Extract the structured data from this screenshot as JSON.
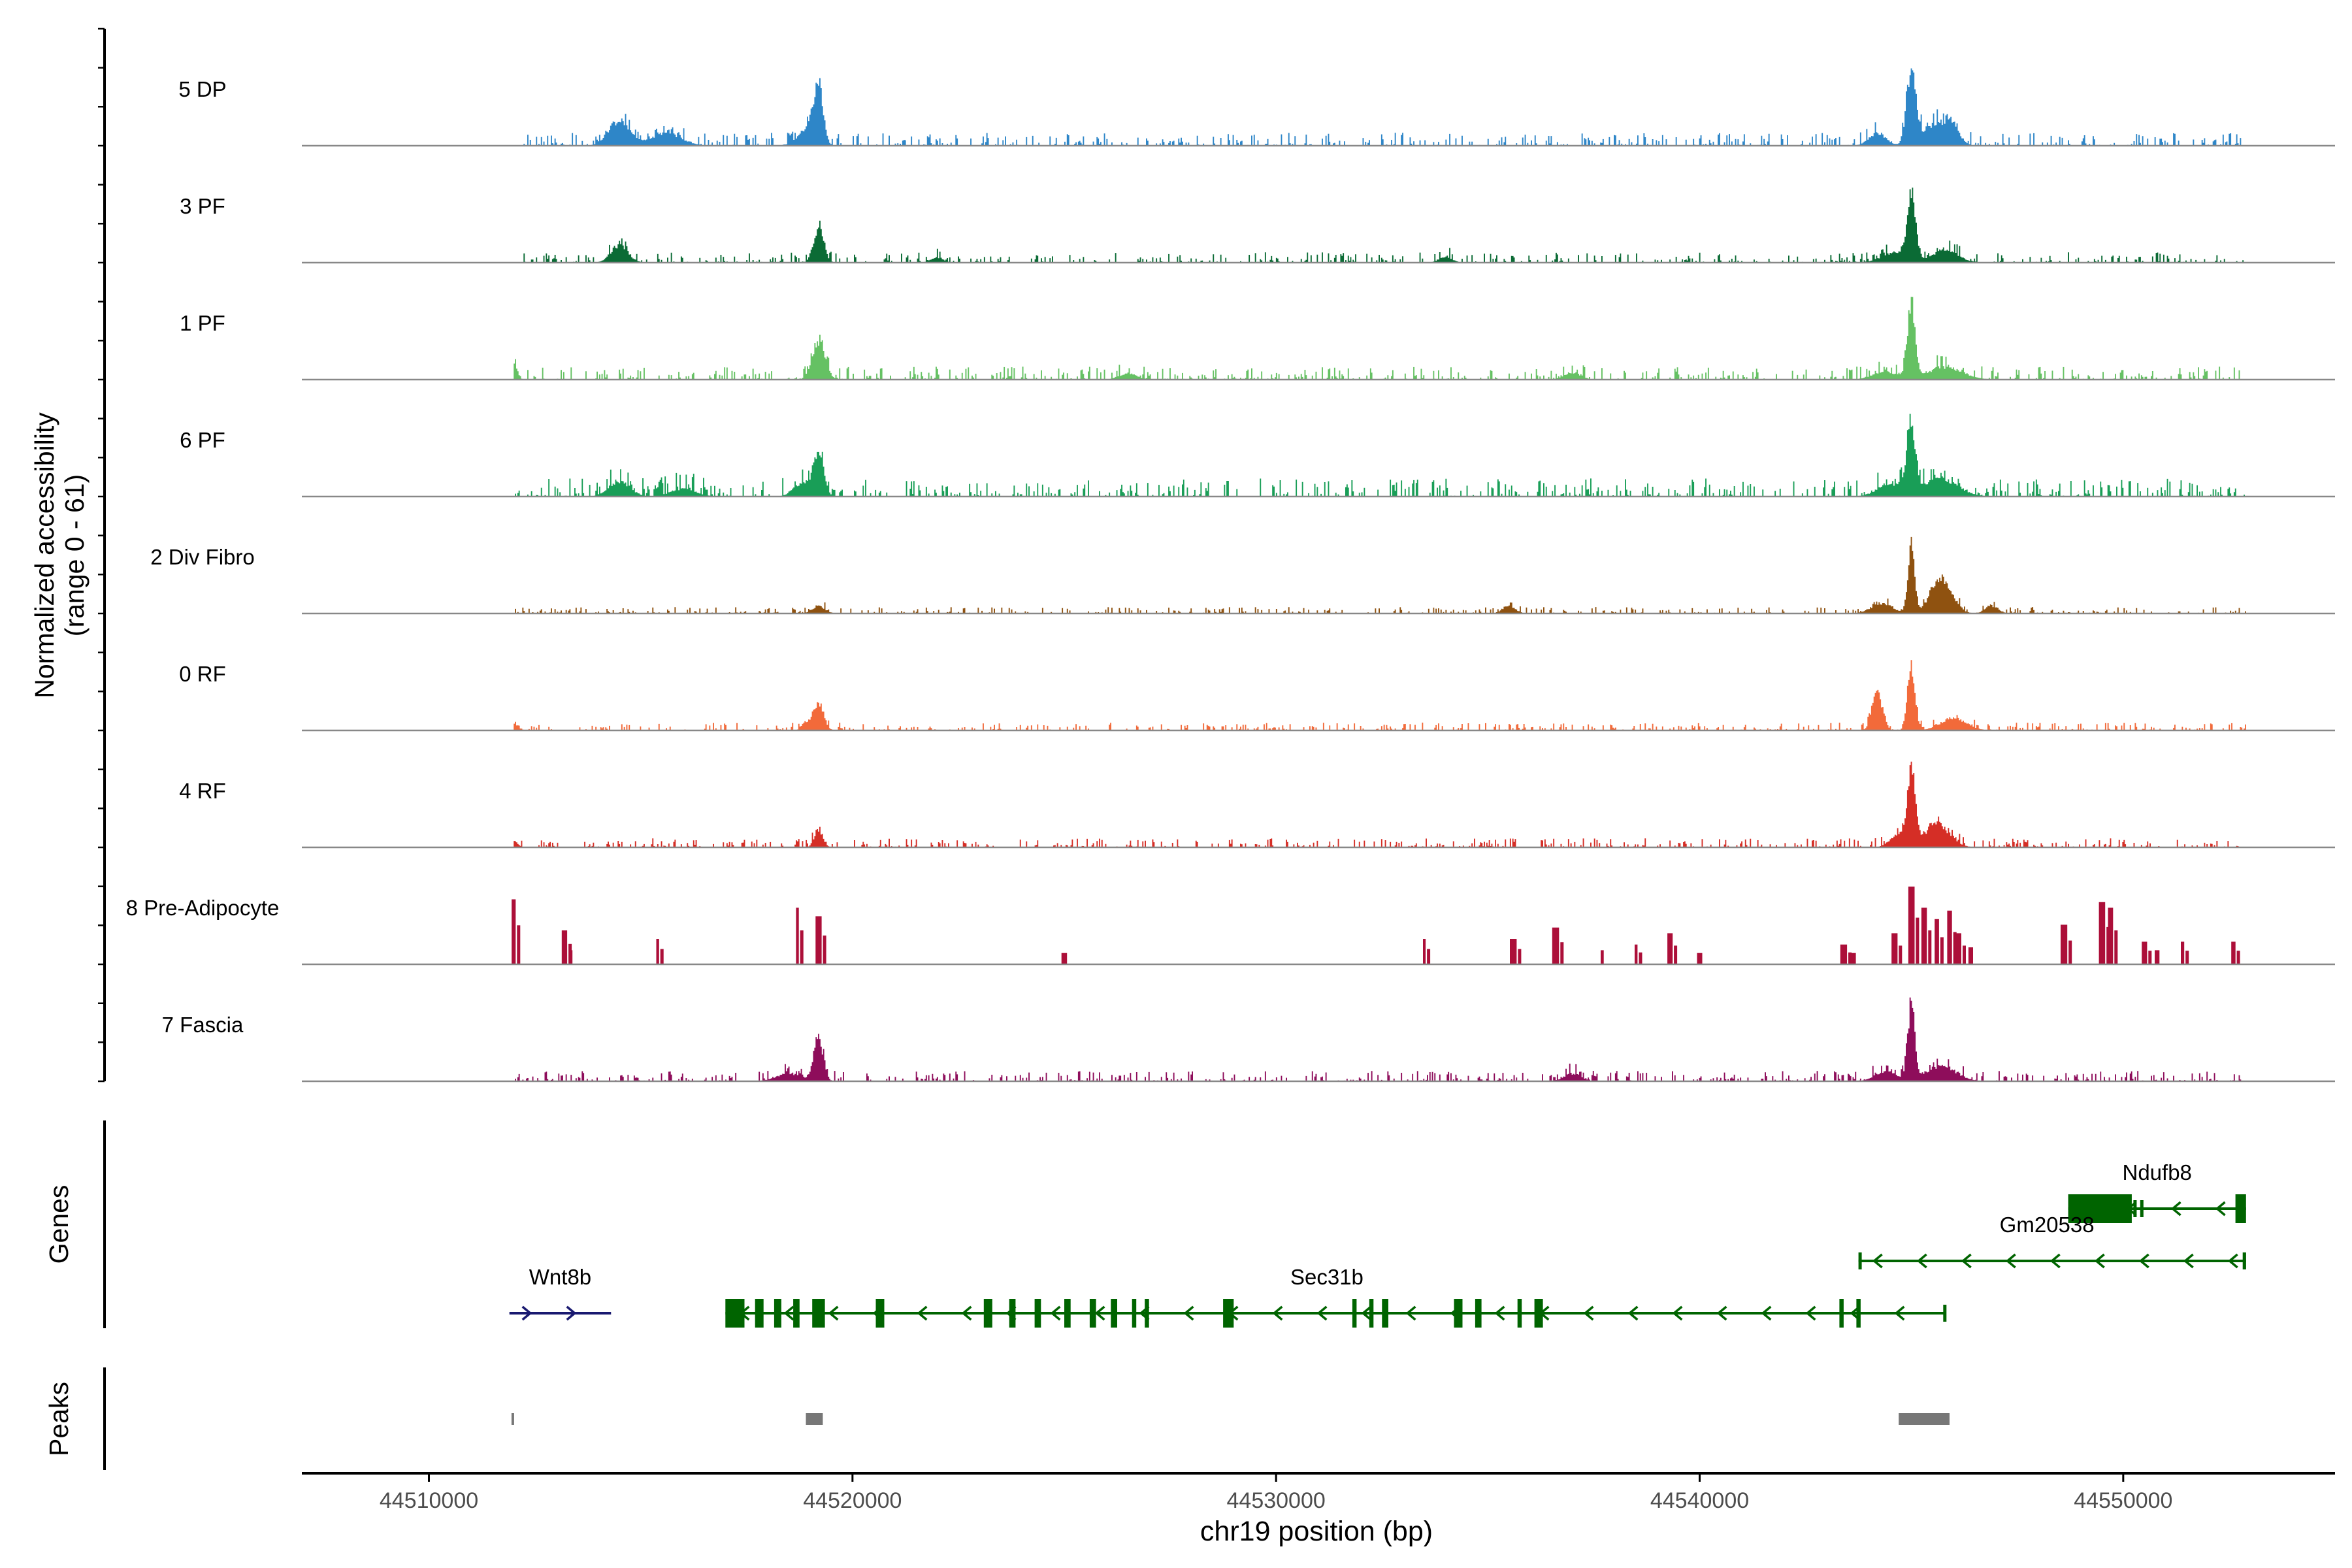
{
  "chart_data": {
    "type": "coverage",
    "title": "",
    "xlabel": "chr19 position (bp)",
    "xlim": [
      44507000,
      44555000
    ],
    "x_ticks": [
      44510000,
      44520000,
      44530000,
      44540000,
      44550000
    ],
    "x_tick_labels": [
      "44510000",
      "44520000",
      "44530000",
      "44540000",
      "44550000"
    ],
    "ylabel_line1": "Normalized accessibility",
    "ylabel_line2": "(range 0 - 61)",
    "ylim": [
      0,
      61
    ],
    "region_start": 44512000,
    "region_end": 44552900,
    "tracks": [
      {
        "name": "5 DP",
        "color": "#2E86C8",
        "noise": 0.05,
        "sparse": false,
        "seed": 11,
        "peaks": [
          [
            44519200,
            43,
            110
          ],
          [
            44545000,
            60,
            110
          ],
          [
            44545600,
            18,
            300
          ],
          [
            44514500,
            20,
            250
          ],
          [
            44515600,
            10,
            350
          ],
          [
            44544200,
            10,
            200
          ],
          [
            44519000,
            12,
            150
          ],
          [
            44518800,
            6,
            200
          ],
          [
            44546000,
            10,
            150
          ]
        ]
      },
      {
        "name": "3 PF",
        "color": "#0B6B35",
        "noise": 0.04,
        "sparse": false,
        "seed": 23,
        "peaks": [
          [
            44519200,
            28,
            120
          ],
          [
            44545000,
            52,
            100
          ],
          [
            44545800,
            10,
            300
          ],
          [
            44514500,
            14,
            200
          ],
          [
            44544600,
            8,
            300
          ],
          [
            44534000,
            5,
            150
          ],
          [
            44522000,
            4,
            150
          ]
        ]
      },
      {
        "name": "1 PF",
        "color": "#65C163",
        "noise": 0.05,
        "sparse": false,
        "seed": 37,
        "peaks": [
          [
            44519200,
            30,
            150
          ],
          [
            44545000,
            61,
            90
          ],
          [
            44545800,
            10,
            400
          ],
          [
            44512000,
            14,
            80
          ],
          [
            44544400,
            6,
            300
          ],
          [
            44537000,
            5,
            200
          ],
          [
            44526500,
            5,
            200
          ]
        ]
      },
      {
        "name": "6 PF",
        "color": "#199E57",
        "noise": 0.07,
        "sparse": false,
        "seed": 41,
        "peaks": [
          [
            44519200,
            34,
            120
          ],
          [
            44545000,
            52,
            100
          ],
          [
            44545700,
            14,
            400
          ],
          [
            44514500,
            12,
            250
          ],
          [
            44516000,
            6,
            300
          ],
          [
            44544500,
            10,
            300
          ],
          [
            44518800,
            10,
            200
          ]
        ]
      },
      {
        "name": "2 Div Fibro",
        "color": "#8F5210",
        "noise": 0.025,
        "sparse": false,
        "seed": 53,
        "peaks": [
          [
            44545000,
            52,
            80
          ],
          [
            44545600,
            22,
            200
          ],
          [
            44545900,
            12,
            200
          ],
          [
            44544300,
            8,
            250
          ],
          [
            44535500,
            6,
            150
          ],
          [
            44519200,
            6,
            150
          ],
          [
            44546900,
            6,
            150
          ]
        ]
      },
      {
        "name": "0 RF",
        "color": "#F26A3A",
        "noise": 0.03,
        "sparse": false,
        "seed": 67,
        "peaks": [
          [
            44519200,
            22,
            120
          ],
          [
            44545000,
            50,
            90
          ],
          [
            44544200,
            30,
            120
          ],
          [
            44546000,
            10,
            300
          ],
          [
            44512000,
            6,
            100
          ],
          [
            44518900,
            6,
            100
          ]
        ]
      },
      {
        "name": "4 RF",
        "color": "#D52E26",
        "noise": 0.035,
        "sparse": false,
        "seed": 79,
        "peaks": [
          [
            44519200,
            14,
            100
          ],
          [
            44545000,
            61,
            90
          ],
          [
            44545600,
            18,
            300
          ],
          [
            44512000,
            5,
            100
          ],
          [
            44544700,
            10,
            200
          ]
        ]
      },
      {
        "name": "8 Pre-Adipocyte",
        "color": "#AC0F39",
        "noise": 0,
        "sparse": true,
        "seed": 91,
        "peaks": [
          [
            44512000,
            46,
            0
          ],
          [
            44513200,
            24,
            0
          ],
          [
            44513350,
            10,
            0
          ],
          [
            44515400,
            18,
            0
          ],
          [
            44518700,
            40,
            0
          ],
          [
            44519200,
            34,
            0
          ],
          [
            44525000,
            8,
            0
          ],
          [
            44533500,
            18,
            0
          ],
          [
            44535600,
            18,
            0
          ],
          [
            44536600,
            26,
            0
          ],
          [
            44537700,
            10,
            0
          ],
          [
            44538500,
            14,
            0
          ],
          [
            44539300,
            22,
            0
          ],
          [
            44540000,
            8,
            0
          ],
          [
            44543400,
            14,
            0
          ],
          [
            44543600,
            8,
            0
          ],
          [
            44544600,
            22,
            0
          ],
          [
            44545000,
            55,
            0
          ],
          [
            44545300,
            40,
            0
          ],
          [
            44545600,
            32,
            0
          ],
          [
            44545900,
            38,
            0
          ],
          [
            44546100,
            22,
            0
          ],
          [
            44546400,
            12,
            0
          ],
          [
            44548600,
            28,
            0
          ],
          [
            44549500,
            44,
            0
          ],
          [
            44549700,
            40,
            0
          ],
          [
            44550500,
            16,
            0
          ],
          [
            44550800,
            10,
            0
          ],
          [
            44551400,
            16,
            0
          ],
          [
            44552600,
            16,
            0
          ]
        ]
      },
      {
        "name": "7 Fascia",
        "color": "#8E0D5B",
        "noise": 0.04,
        "sparse": false,
        "seed": 103,
        "peaks": [
          [
            44519200,
            34,
            110
          ],
          [
            44545000,
            63,
            80
          ],
          [
            44545700,
            12,
            350
          ],
          [
            44518500,
            6,
            300
          ],
          [
            44544400,
            8,
            250
          ],
          [
            44537000,
            6,
            200
          ]
        ]
      }
    ],
    "genes": [
      {
        "name": "Ndufb8",
        "start": 44548700,
        "end": 44552900,
        "strand": "-",
        "color": "#006400",
        "row": 0,
        "exons": [
          [
            44548700,
            44550200,
            true
          ],
          [
            44550240,
            44550290,
            false
          ],
          [
            44550400,
            44550470,
            false
          ],
          [
            44552650,
            44552900,
            true
          ]
        ]
      },
      {
        "name": "Gm20538",
        "start": 44543750,
        "end": 44552900,
        "strand": "-",
        "color": "#006400",
        "row": 1,
        "exons": [
          [
            44543750,
            44543800,
            false
          ],
          [
            44552820,
            44552900,
            false
          ]
        ]
      },
      {
        "name": "Sec31b",
        "start": 44517000,
        "end": 44545800,
        "strand": "-",
        "color": "#006400",
        "row": 2,
        "exons": [
          [
            44517000,
            44517450,
            true
          ],
          [
            44517700,
            44517900,
            true
          ],
          [
            44518150,
            44518320,
            true
          ],
          [
            44518600,
            44518750,
            true
          ],
          [
            44519050,
            44519350,
            true
          ],
          [
            44520550,
            44520750,
            true
          ],
          [
            44523100,
            44523300,
            true
          ],
          [
            44523700,
            44523850,
            true
          ],
          [
            44524300,
            44524450,
            true
          ],
          [
            44525000,
            44525150,
            true
          ],
          [
            44525600,
            44525750,
            true
          ],
          [
            44526100,
            44526250,
            true
          ],
          [
            44526600,
            44526700,
            true
          ],
          [
            44526900,
            44527000,
            true
          ],
          [
            44528750,
            44529000,
            true
          ],
          [
            44531800,
            44531900,
            true
          ],
          [
            44532200,
            44532300,
            true
          ],
          [
            44532500,
            44532650,
            true
          ],
          [
            44534200,
            44534400,
            true
          ],
          [
            44534700,
            44534850,
            true
          ],
          [
            44535700,
            44535800,
            true
          ],
          [
            44536100,
            44536300,
            true
          ],
          [
            44543300,
            44543400,
            true
          ],
          [
            44543700,
            44543800,
            true
          ],
          [
            44545750,
            44545800,
            false
          ]
        ]
      },
      {
        "name": "Wnt8b",
        "start": 44511900,
        "end": 44514300,
        "strand": "+",
        "color": "#191970",
        "row": 2,
        "exons": []
      }
    ],
    "peaks_track": {
      "label": "Peaks",
      "color": "#777777",
      "regions": [
        [
          44511950,
          44512000
        ],
        [
          44518900,
          44519300
        ],
        [
          44544700,
          44545900
        ]
      ]
    },
    "panel_labels": {
      "genes": "Genes",
      "peaks": "Peaks"
    }
  }
}
